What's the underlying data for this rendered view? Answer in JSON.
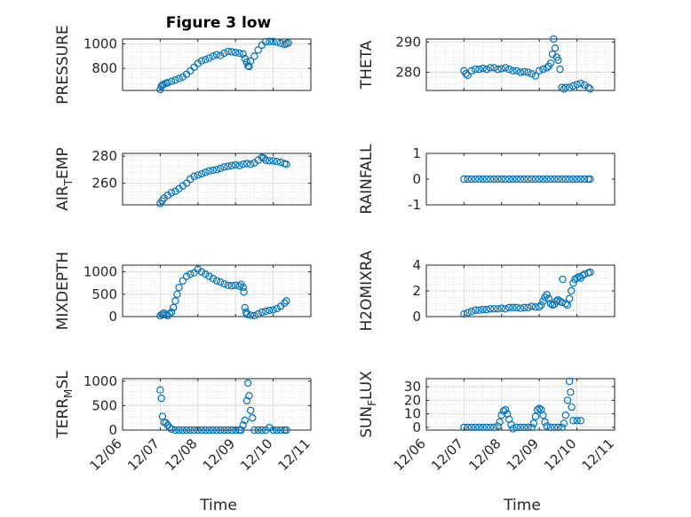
{
  "figure": {
    "title": "Figure 3 low",
    "marker_color": "#0072BD"
  },
  "x_axis": {
    "label": "Time",
    "ticks": [
      {
        "value": 0,
        "label": "12/06"
      },
      {
        "value": 1,
        "label": "12/07"
      },
      {
        "value": 2,
        "label": "12/08"
      },
      {
        "value": 3,
        "label": "12/09"
      },
      {
        "value": 4,
        "label": "12/10"
      },
      {
        "value": 5,
        "label": "12/11"
      }
    ]
  },
  "chart_data": [
    {
      "type": "scatter",
      "ylabel": "PRESSURE",
      "ylabel_sub": "",
      "ylabel_tail": "",
      "xlim": [
        0,
        5
      ],
      "ylim": [
        620,
        1040
      ],
      "yticks": [
        800,
        1000
      ],
      "grid": true,
      "points": [
        [
          1,
          628
        ],
        [
          1.03,
          655
        ],
        [
          1.06,
          665
        ],
        [
          1.1,
          672
        ],
        [
          1.15,
          678
        ],
        [
          1.2,
          684
        ],
        [
          1.3,
          695
        ],
        [
          1.4,
          705
        ],
        [
          1.5,
          718
        ],
        [
          1.6,
          730
        ],
        [
          1.7,
          752
        ],
        [
          1.8,
          780
        ],
        [
          1.9,
          810
        ],
        [
          2,
          840
        ],
        [
          2.1,
          862
        ],
        [
          2.2,
          872
        ],
        [
          2.3,
          885
        ],
        [
          2.4,
          900
        ],
        [
          2.5,
          912
        ],
        [
          2.6,
          905
        ],
        [
          2.7,
          925
        ],
        [
          2.8,
          938
        ],
        [
          2.9,
          936
        ],
        [
          3,
          930
        ],
        [
          3.1,
          925
        ],
        [
          3.2,
          918
        ],
        [
          3.25,
          880
        ],
        [
          3.3,
          850
        ],
        [
          3.33,
          820
        ],
        [
          3.36,
          815
        ],
        [
          3.4,
          860
        ],
        [
          3.5,
          900
        ],
        [
          3.6,
          950
        ],
        [
          3.7,
          990
        ],
        [
          3.8,
          1018
        ],
        [
          3.9,
          1020
        ],
        [
          4,
          1020
        ],
        [
          4.1,
          1015
        ],
        [
          4.2,
          1005
        ],
        [
          4.3,
          995
        ],
        [
          4.35,
          1002
        ],
        [
          4.4,
          1008
        ]
      ]
    },
    {
      "type": "scatter",
      "ylabel": "THETA",
      "ylabel_sub": "",
      "ylabel_tail": "",
      "xlim": [
        0,
        5
      ],
      "ylim": [
        274,
        291
      ],
      "yticks": [
        280,
        290
      ],
      "grid": true,
      "points": [
        [
          1,
          280.5
        ],
        [
          1.05,
          279.5
        ],
        [
          1.1,
          279
        ],
        [
          1.2,
          280.5
        ],
        [
          1.3,
          281
        ],
        [
          1.4,
          281
        ],
        [
          1.5,
          281.3
        ],
        [
          1.6,
          281
        ],
        [
          1.7,
          281.5
        ],
        [
          1.8,
          281.5
        ],
        [
          1.9,
          281
        ],
        [
          2,
          281.2
        ],
        [
          2.1,
          281.5
        ],
        [
          2.2,
          281
        ],
        [
          2.3,
          280.5
        ],
        [
          2.4,
          280.5
        ],
        [
          2.5,
          280
        ],
        [
          2.6,
          280.2
        ],
        [
          2.7,
          280
        ],
        [
          2.8,
          279.5
        ],
        [
          2.9,
          278.8
        ],
        [
          3,
          280.5
        ],
        [
          3.1,
          281
        ],
        [
          3.2,
          281.5
        ],
        [
          3.25,
          282
        ],
        [
          3.3,
          283
        ],
        [
          3.35,
          286
        ],
        [
          3.38,
          291
        ],
        [
          3.42,
          288
        ],
        [
          3.46,
          285
        ],
        [
          3.5,
          284
        ],
        [
          3.55,
          281
        ],
        [
          3.6,
          275
        ],
        [
          3.65,
          274.5
        ],
        [
          3.7,
          275
        ],
        [
          3.8,
          275
        ],
        [
          3.9,
          275.5
        ],
        [
          4,
          276
        ],
        [
          4.1,
          276.3
        ],
        [
          4.2,
          275.8
        ],
        [
          4.3,
          275
        ],
        [
          4.35,
          274.5
        ]
      ]
    },
    {
      "type": "scatter",
      "ylabel": "AIR",
      "ylabel_sub": "T",
      "ylabel_tail": "EMP",
      "xlim": [
        0,
        5
      ],
      "ylim": [
        244,
        282
      ],
      "yticks": [
        260,
        280
      ],
      "grid": true,
      "points": [
        [
          1,
          245
        ],
        [
          1.05,
          247
        ],
        [
          1.1,
          249
        ],
        [
          1.2,
          251
        ],
        [
          1.3,
          253
        ],
        [
          1.4,
          254
        ],
        [
          1.5,
          256
        ],
        [
          1.6,
          258
        ],
        [
          1.7,
          260
        ],
        [
          1.8,
          263
        ],
        [
          1.9,
          265
        ],
        [
          2,
          266
        ],
        [
          2.1,
          267
        ],
        [
          2.2,
          268
        ],
        [
          2.3,
          269
        ],
        [
          2.4,
          269.5
        ],
        [
          2.5,
          270
        ],
        [
          2.6,
          271
        ],
        [
          2.7,
          272
        ],
        [
          2.8,
          272.5
        ],
        [
          2.9,
          273
        ],
        [
          3,
          273.5
        ],
        [
          3.1,
          273
        ],
        [
          3.2,
          274
        ],
        [
          3.3,
          274.5
        ],
        [
          3.4,
          274
        ],
        [
          3.5,
          275
        ],
        [
          3.6,
          277
        ],
        [
          3.7,
          279
        ],
        [
          3.75,
          278.5
        ],
        [
          3.8,
          277
        ],
        [
          3.9,
          276.5
        ],
        [
          4,
          276.5
        ],
        [
          4.1,
          276
        ],
        [
          4.2,
          275.5
        ],
        [
          4.3,
          274.5
        ],
        [
          4.35,
          274
        ]
      ]
    },
    {
      "type": "scatter",
      "ylabel": "RAINFALL",
      "ylabel_sub": "",
      "ylabel_tail": "",
      "xlim": [
        0,
        5
      ],
      "ylim": [
        -1,
        1
      ],
      "yticks": [
        -1,
        0,
        1
      ],
      "grid": false,
      "points": [
        [
          1,
          0
        ],
        [
          1.1,
          0
        ],
        [
          1.2,
          0
        ],
        [
          1.3,
          0
        ],
        [
          1.4,
          0
        ],
        [
          1.5,
          0
        ],
        [
          1.6,
          0
        ],
        [
          1.7,
          0
        ],
        [
          1.8,
          0
        ],
        [
          1.9,
          0
        ],
        [
          2,
          0
        ],
        [
          2.1,
          0
        ],
        [
          2.2,
          0
        ],
        [
          2.3,
          0
        ],
        [
          2.4,
          0
        ],
        [
          2.5,
          0
        ],
        [
          2.6,
          0
        ],
        [
          2.7,
          0
        ],
        [
          2.8,
          0
        ],
        [
          2.9,
          0
        ],
        [
          3,
          0
        ],
        [
          3.1,
          0
        ],
        [
          3.2,
          0
        ],
        [
          3.3,
          0
        ],
        [
          3.4,
          0
        ],
        [
          3.5,
          0
        ],
        [
          3.6,
          0
        ],
        [
          3.7,
          0
        ],
        [
          3.8,
          0
        ],
        [
          3.9,
          0
        ],
        [
          4,
          0
        ],
        [
          4.1,
          0
        ],
        [
          4.2,
          0
        ],
        [
          4.3,
          0
        ],
        [
          4.35,
          0
        ]
      ]
    },
    {
      "type": "scatter",
      "ylabel": "MIXDEPTH",
      "ylabel_sub": "",
      "ylabel_tail": "",
      "xlim": [
        0,
        5
      ],
      "ylim": [
        0,
        1150
      ],
      "yticks": [
        0,
        500,
        1000
      ],
      "grid": true,
      "points": [
        [
          1,
          20
        ],
        [
          1.05,
          50
        ],
        [
          1.1,
          80
        ],
        [
          1.15,
          40
        ],
        [
          1.2,
          20
        ],
        [
          1.25,
          60
        ],
        [
          1.3,
          100
        ],
        [
          1.35,
          200
        ],
        [
          1.4,
          350
        ],
        [
          1.45,
          500
        ],
        [
          1.5,
          650
        ],
        [
          1.6,
          800
        ],
        [
          1.7,
          900
        ],
        [
          1.8,
          950
        ],
        [
          1.9,
          980
        ],
        [
          2,
          1060
        ],
        [
          2.1,
          1000
        ],
        [
          2.2,
          950
        ],
        [
          2.3,
          900
        ],
        [
          2.4,
          850
        ],
        [
          2.5,
          800
        ],
        [
          2.6,
          770
        ],
        [
          2.7,
          730
        ],
        [
          2.8,
          700
        ],
        [
          2.9,
          690
        ],
        [
          3,
          700
        ],
        [
          3.1,
          680
        ],
        [
          3.15,
          720
        ],
        [
          3.2,
          650
        ],
        [
          3.22,
          550
        ],
        [
          3.25,
          200
        ],
        [
          3.28,
          100
        ],
        [
          3.3,
          50
        ],
        [
          3.4,
          30
        ],
        [
          3.5,
          20
        ],
        [
          3.6,
          60
        ],
        [
          3.7,
          100
        ],
        [
          3.8,
          120
        ],
        [
          3.9,
          140
        ],
        [
          4,
          150
        ],
        [
          4.1,
          180
        ],
        [
          4.2,
          230
        ],
        [
          4.3,
          300
        ],
        [
          4.35,
          350
        ]
      ]
    },
    {
      "type": "scatter",
      "ylabel": "H2OMIXRA",
      "ylabel_sub": "",
      "ylabel_tail": "",
      "xlim": [
        0,
        5
      ],
      "ylim": [
        0,
        4
      ],
      "yticks": [
        0,
        2,
        4
      ],
      "grid": true,
      "points": [
        [
          1,
          0.2
        ],
        [
          1.1,
          0.3
        ],
        [
          1.2,
          0.4
        ],
        [
          1.3,
          0.5
        ],
        [
          1.4,
          0.5
        ],
        [
          1.5,
          0.55
        ],
        [
          1.6,
          0.55
        ],
        [
          1.7,
          0.6
        ],
        [
          1.8,
          0.6
        ],
        [
          1.9,
          0.6
        ],
        [
          2,
          0.65
        ],
        [
          2.1,
          0.6
        ],
        [
          2.2,
          0.7
        ],
        [
          2.3,
          0.7
        ],
        [
          2.4,
          0.7
        ],
        [
          2.5,
          0.65
        ],
        [
          2.6,
          0.7
        ],
        [
          2.7,
          0.7
        ],
        [
          2.8,
          0.8
        ],
        [
          2.9,
          0.75
        ],
        [
          3,
          0.75
        ],
        [
          3.05,
          0.9
        ],
        [
          3.1,
          1.2
        ],
        [
          3.15,
          1.5
        ],
        [
          3.2,
          1.7
        ],
        [
          3.25,
          1.4
        ],
        [
          3.3,
          1.0
        ],
        [
          3.35,
          0.9
        ],
        [
          3.4,
          0.95
        ],
        [
          3.45,
          1.2
        ],
        [
          3.5,
          1.3
        ],
        [
          3.55,
          1.2
        ],
        [
          3.6,
          1.1
        ],
        [
          3.62,
          2.9
        ],
        [
          3.7,
          1.0
        ],
        [
          3.75,
          0.9
        ],
        [
          3.8,
          1.4
        ],
        [
          3.85,
          2.0
        ],
        [
          3.9,
          2.6
        ],
        [
          3.95,
          2.9
        ],
        [
          4,
          3.0
        ],
        [
          4.05,
          3.1
        ],
        [
          4.1,
          3.0
        ],
        [
          4.15,
          3.2
        ],
        [
          4.2,
          3.3
        ],
        [
          4.3,
          3.4
        ],
        [
          4.35,
          3.45
        ]
      ]
    },
    {
      "type": "scatter",
      "ylabel": "TERR",
      "ylabel_sub": "M",
      "ylabel_tail": "SL",
      "xlim": [
        0,
        5
      ],
      "ylim": [
        0,
        1050
      ],
      "yticks": [
        0,
        500,
        1000
      ],
      "grid": true,
      "points": [
        [
          1,
          820
        ],
        [
          1.03,
          650
        ],
        [
          1.06,
          280
        ],
        [
          1.1,
          160
        ],
        [
          1.15,
          150
        ],
        [
          1.2,
          100
        ],
        [
          1.25,
          50
        ],
        [
          1.3,
          20
        ],
        [
          1.4,
          0
        ],
        [
          1.5,
          0
        ],
        [
          1.6,
          0
        ],
        [
          1.7,
          0
        ],
        [
          1.8,
          0
        ],
        [
          1.9,
          0
        ],
        [
          2,
          0
        ],
        [
          2.1,
          0
        ],
        [
          2.2,
          0
        ],
        [
          2.3,
          0
        ],
        [
          2.4,
          0
        ],
        [
          2.5,
          0
        ],
        [
          2.6,
          0
        ],
        [
          2.7,
          0
        ],
        [
          2.8,
          0
        ],
        [
          2.9,
          0
        ],
        [
          3,
          0
        ],
        [
          3.1,
          0
        ],
        [
          3.15,
          0
        ],
        [
          3.2,
          100
        ],
        [
          3.25,
          200
        ],
        [
          3.3,
          600
        ],
        [
          3.33,
          960
        ],
        [
          3.36,
          700
        ],
        [
          3.4,
          400
        ],
        [
          3.45,
          250
        ],
        [
          3.5,
          0
        ],
        [
          3.6,
          0
        ],
        [
          3.7,
          0
        ],
        [
          3.8,
          0
        ],
        [
          3.9,
          50
        ],
        [
          4,
          0
        ],
        [
          4.1,
          0
        ],
        [
          4.2,
          0
        ],
        [
          4.3,
          0
        ],
        [
          4.35,
          0
        ]
      ]
    },
    {
      "type": "scatter",
      "ylabel": "SUN",
      "ylabel_sub": "F",
      "ylabel_tail": "LUX",
      "xlim": [
        0,
        5
      ],
      "ylim": [
        -2,
        36
      ],
      "yticks": [
        0,
        10,
        20,
        30
      ],
      "grid": true,
      "points": [
        [
          1,
          0
        ],
        [
          1.1,
          0
        ],
        [
          1.2,
          0
        ],
        [
          1.3,
          0
        ],
        [
          1.4,
          0
        ],
        [
          1.5,
          0
        ],
        [
          1.6,
          0
        ],
        [
          1.7,
          0
        ],
        [
          1.8,
          0
        ],
        [
          1.9,
          1
        ],
        [
          1.95,
          4
        ],
        [
          2,
          9
        ],
        [
          2.05,
          12
        ],
        [
          2.1,
          13
        ],
        [
          2.15,
          10
        ],
        [
          2.2,
          6
        ],
        [
          2.25,
          2
        ],
        [
          2.3,
          -1
        ],
        [
          2.4,
          0
        ],
        [
          2.5,
          0
        ],
        [
          2.6,
          0
        ],
        [
          2.7,
          0
        ],
        [
          2.8,
          0
        ],
        [
          2.85,
          3
        ],
        [
          2.9,
          8
        ],
        [
          2.95,
          13
        ],
        [
          3,
          14
        ],
        [
          3.05,
          13
        ],
        [
          3.1,
          9
        ],
        [
          3.15,
          4
        ],
        [
          3.2,
          1
        ],
        [
          3.3,
          0
        ],
        [
          3.4,
          0
        ],
        [
          3.5,
          0
        ],
        [
          3.6,
          0
        ],
        [
          3.65,
          3
        ],
        [
          3.7,
          9
        ],
        [
          3.75,
          20
        ],
        [
          3.8,
          34
        ],
        [
          3.83,
          26
        ],
        [
          3.86,
          15
        ],
        [
          3.9,
          5
        ],
        [
          4,
          5
        ],
        [
          4.1,
          5
        ]
      ]
    }
  ]
}
